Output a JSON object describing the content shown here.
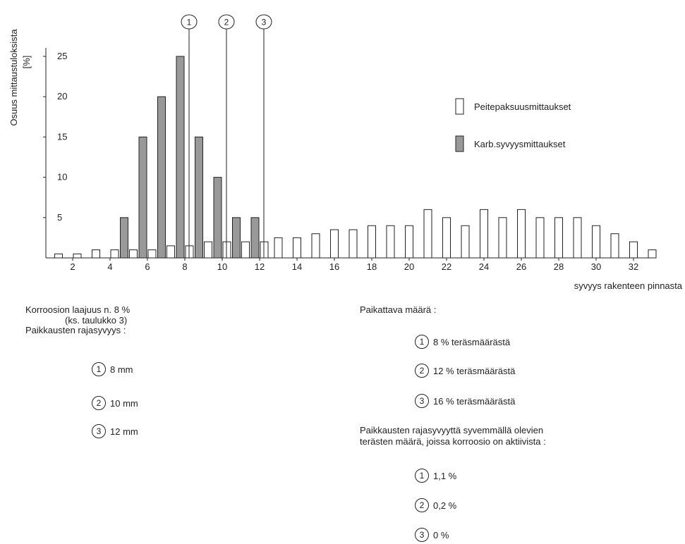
{
  "chart_data": {
    "type": "bar",
    "ylabel": "Osuus mittaustuloksista [%]",
    "xlabel": "syvyys rakenteen pinnasta",
    "ylim": [
      0,
      27
    ],
    "yticks": [
      5,
      10,
      15,
      20,
      25
    ],
    "xticks": [
      2,
      4,
      6,
      8,
      10,
      12,
      14,
      16,
      18,
      20,
      22,
      24,
      26,
      28,
      30,
      32
    ],
    "grid": false,
    "legend_position": "right",
    "series": [
      {
        "name": "Peitepaksuusmittaukset",
        "color": "#ffffff",
        "x": [
          1,
          2,
          3,
          4,
          5,
          6,
          7,
          8,
          9,
          10,
          11,
          12,
          13,
          14,
          15,
          16,
          17,
          18,
          19,
          20,
          21,
          22,
          23,
          24,
          25,
          26,
          27,
          28,
          29,
          30,
          31,
          32,
          33
        ],
        "values": [
          0.5,
          0.5,
          1,
          1,
          1,
          1,
          1.5,
          1.5,
          2,
          2,
          2,
          2,
          2.5,
          2.5,
          3,
          3.5,
          3.5,
          4,
          4,
          4,
          6,
          5,
          4,
          6,
          5,
          6,
          5,
          5,
          5,
          4,
          3,
          2,
          1
        ]
      },
      {
        "name": "Karb.syvyysmittaukset",
        "color": "#999999",
        "x": [
          5,
          6,
          7,
          8,
          9,
          10,
          11,
          12
        ],
        "values": [
          5,
          15,
          20,
          25,
          15,
          10,
          5,
          5
        ]
      }
    ],
    "markers": [
      {
        "label": "1",
        "x": 8
      },
      {
        "label": "2",
        "x": 10
      },
      {
        "label": "3",
        "x": 12
      }
    ]
  },
  "notes": {
    "left": {
      "line1": "Korroosion laajuus n. 8 %",
      "line2": "(ks. taulukko 3)",
      "line3": "Paikkausten rajasyvyys :",
      "items": [
        {
          "num": "1",
          "text": "8 mm"
        },
        {
          "num": "2",
          "text": "10 mm"
        },
        {
          "num": "3",
          "text": "12 mm"
        }
      ]
    },
    "right": {
      "heading1": "Paikattava määrä :",
      "items1": [
        {
          "num": "1",
          "text": "8 % teräsmäärästä"
        },
        {
          "num": "2",
          "text": "12 % teräsmäärästä"
        },
        {
          "num": "3",
          "text": "16 % teräsmäärästä"
        }
      ],
      "heading2_line1": "Paikkausten rajasyvyyttä syvemmällä olevien",
      "heading2_line2": "terästen määrä, joissa korroosio on aktiivista :",
      "items2": [
        {
          "num": "1",
          "text": "1,1 %"
        },
        {
          "num": "2",
          "text": "0,2 %"
        },
        {
          "num": "3",
          "text": "0 %"
        }
      ]
    }
  }
}
